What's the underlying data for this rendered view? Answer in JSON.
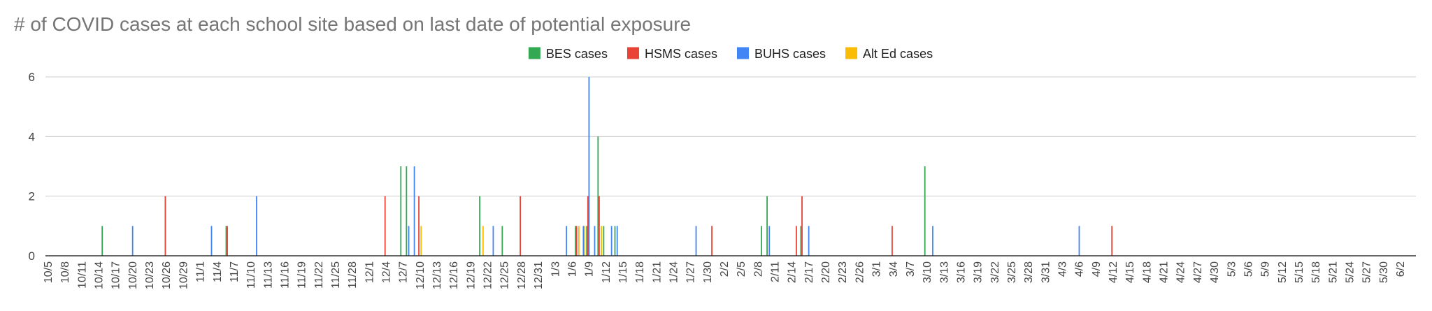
{
  "chart_data": {
    "type": "bar",
    "title": "# of COVID cases at each school site based on last date of potential exposure",
    "xlabel": "",
    "ylabel": "",
    "ylim": [
      0,
      6
    ],
    "yticks": [
      "0",
      "2",
      "4",
      "6"
    ],
    "grid": true,
    "legend_position": "top",
    "x_tick_labels": [
      "10/5",
      "10/8",
      "10/11",
      "10/14",
      "10/17",
      "10/20",
      "10/23",
      "10/26",
      "10/29",
      "11/1",
      "11/4",
      "11/7",
      "11/10",
      "11/13",
      "11/16",
      "11/19",
      "11/22",
      "11/25",
      "11/28",
      "12/1",
      "12/4",
      "12/7",
      "12/10",
      "12/13",
      "12/16",
      "12/19",
      "12/22",
      "12/25",
      "12/28",
      "12/31",
      "1/3",
      "1/6",
      "1/9",
      "1/12",
      "1/15",
      "1/18",
      "1/21",
      "1/24",
      "1/27",
      "1/30",
      "2/2",
      "2/5",
      "2/8",
      "2/11",
      "2/14",
      "2/17",
      "2/20",
      "2/23",
      "2/26",
      "3/1",
      "3/4",
      "3/7",
      "3/10",
      "3/13",
      "3/16",
      "3/19",
      "3/22",
      "3/25",
      "3/28",
      "3/31",
      "4/3",
      "4/6",
      "4/9",
      "4/12",
      "4/15",
      "4/18",
      "4/21",
      "4/24",
      "4/27",
      "4/30",
      "5/3",
      "5/6",
      "5/9",
      "5/12",
      "5/15",
      "5/18",
      "5/21",
      "5/24",
      "5/27",
      "5/30",
      "6/2"
    ],
    "series": [
      {
        "name": "BES cases",
        "color": "#34a853",
        "points": [
          {
            "x": "10/15",
            "y": 1
          },
          {
            "x": "11/6",
            "y": 1
          },
          {
            "x": "12/7",
            "y": 3
          },
          {
            "x": "12/8",
            "y": 3
          },
          {
            "x": "12/21",
            "y": 2
          },
          {
            "x": "12/25",
            "y": 1
          },
          {
            "x": "1/7",
            "y": 1
          },
          {
            "x": "1/9",
            "y": 1
          },
          {
            "x": "1/11",
            "y": 4
          },
          {
            "x": "1/12",
            "y": 1
          },
          {
            "x": "1/14",
            "y": 1
          },
          {
            "x": "2/9",
            "y": 1
          },
          {
            "x": "2/10",
            "y": 2
          },
          {
            "x": "2/16",
            "y": 1
          },
          {
            "x": "3/10",
            "y": 3
          }
        ]
      },
      {
        "name": "HSMS cases",
        "color": "#ea4335",
        "points": [
          {
            "x": "10/26",
            "y": 2
          },
          {
            "x": "11/6",
            "y": 1
          },
          {
            "x": "12/4",
            "y": 2
          },
          {
            "x": "12/10",
            "y": 2
          },
          {
            "x": "12/28",
            "y": 2
          },
          {
            "x": "1/7",
            "y": 1
          },
          {
            "x": "1/9",
            "y": 2
          },
          {
            "x": "1/11",
            "y": 2
          },
          {
            "x": "1/31",
            "y": 1
          },
          {
            "x": "2/15",
            "y": 1
          },
          {
            "x": "2/16",
            "y": 2
          },
          {
            "x": "3/4",
            "y": 1
          },
          {
            "x": "4/12",
            "y": 1
          }
        ]
      },
      {
        "name": "BUHS cases",
        "color": "#4285f4",
        "points": [
          {
            "x": "10/20",
            "y": 1
          },
          {
            "x": "11/3",
            "y": 1
          },
          {
            "x": "11/11",
            "y": 2
          },
          {
            "x": "12/8",
            "y": 1
          },
          {
            "x": "12/9",
            "y": 3
          },
          {
            "x": "12/23",
            "y": 1
          },
          {
            "x": "1/5",
            "y": 1
          },
          {
            "x": "1/8",
            "y": 1
          },
          {
            "x": "1/9",
            "y": 6
          },
          {
            "x": "1/10",
            "y": 1
          },
          {
            "x": "1/13",
            "y": 1
          },
          {
            "x": "1/14",
            "y": 1
          },
          {
            "x": "1/28",
            "y": 1
          },
          {
            "x": "2/10",
            "y": 1
          },
          {
            "x": "2/17",
            "y": 1
          },
          {
            "x": "3/11",
            "y": 1
          },
          {
            "x": "4/6",
            "y": 1
          }
        ]
      },
      {
        "name": "Alt Ed cases",
        "color": "#fbbc04",
        "points": [
          {
            "x": "12/10",
            "y": 1
          },
          {
            "x": "12/21",
            "y": 1
          },
          {
            "x": "1/7",
            "y": 1
          },
          {
            "x": "1/8",
            "y": 1
          },
          {
            "x": "1/11",
            "y": 1
          }
        ]
      }
    ]
  }
}
